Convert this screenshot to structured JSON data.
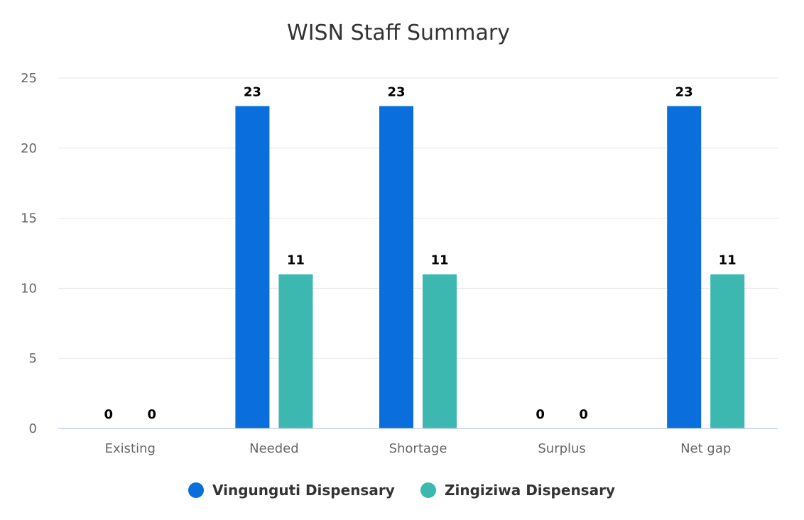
{
  "chart_data": {
    "type": "bar",
    "title": "WISN Staff Summary",
    "xlabel": "",
    "ylabel": "",
    "categories": [
      "Existing",
      "Needed",
      "Shortage",
      "Surplus",
      "Net gap"
    ],
    "series": [
      {
        "name": "Vingunguti Dispensary",
        "values": [
          0,
          23,
          23,
          0,
          23
        ],
        "color": "#0a6fdc"
      },
      {
        "name": "Zingiziwa Dispensary",
        "values": [
          0,
          11,
          11,
          0,
          11
        ],
        "color": "#3cb8b1"
      }
    ],
    "ylim": [
      0,
      25
    ],
    "yticks": [
      0,
      5,
      10,
      15,
      20,
      25
    ],
    "grid": true,
    "data_labels": true,
    "legend_position": "bottom-center"
  }
}
